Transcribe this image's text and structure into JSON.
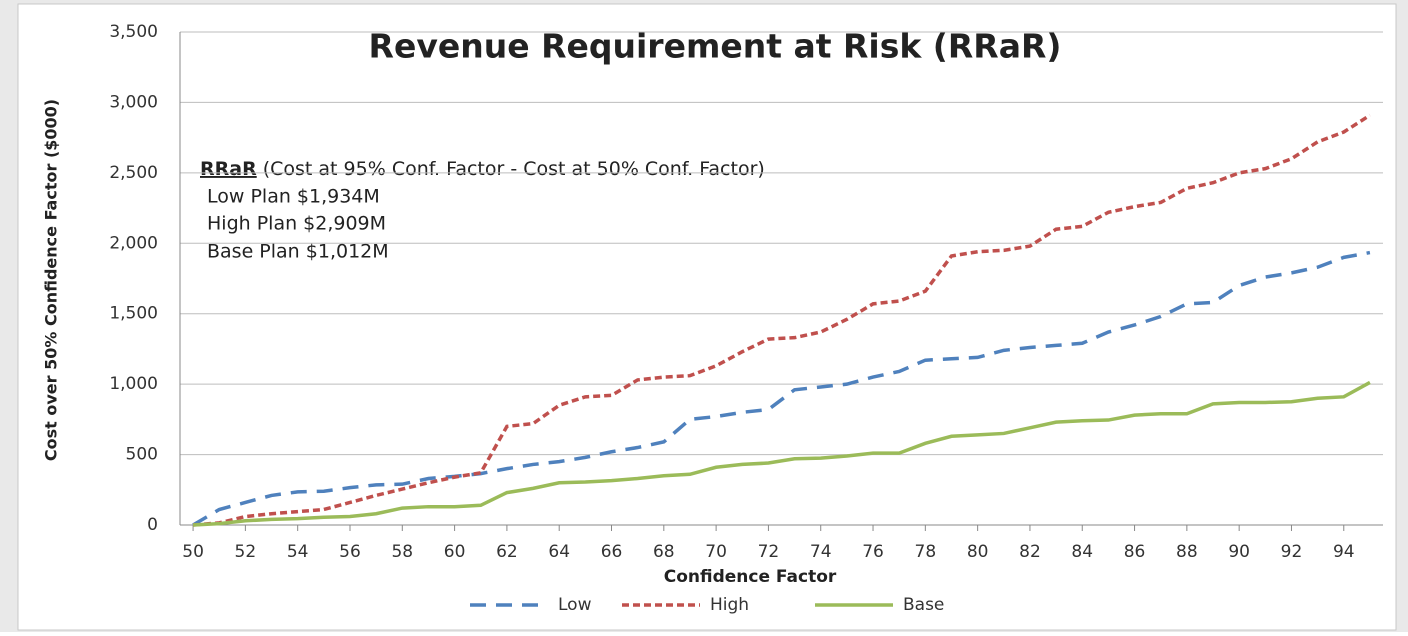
{
  "chart_data": {
    "type": "line",
    "title": "Revenue Requirement at Risk (RRaR)",
    "x_label": "Confidence Factor",
    "y_label": "Cost over 50% Confidence Factor ($000)",
    "annotation": {
      "heading": "RRaR",
      "heading_note": "(Cost at 95% Conf. Factor - Cost at 50% Conf. Factor)",
      "lines": [
        "Low Plan $1,934M",
        "High Plan $2,909M",
        "Base Plan $1,012M"
      ]
    },
    "x": [
      50,
      51,
      52,
      53,
      54,
      55,
      56,
      57,
      58,
      59,
      60,
      61,
      62,
      63,
      64,
      65,
      66,
      67,
      68,
      69,
      70,
      71,
      72,
      73,
      74,
      75,
      76,
      77,
      78,
      79,
      80,
      81,
      82,
      83,
      84,
      85,
      86,
      87,
      88,
      89,
      90,
      91,
      92,
      93,
      94,
      95
    ],
    "xlim": [
      49.5,
      95.5
    ],
    "xticks": [
      50,
      52,
      54,
      56,
      58,
      60,
      62,
      64,
      66,
      68,
      70,
      72,
      74,
      76,
      78,
      80,
      82,
      84,
      86,
      88,
      90,
      92,
      94
    ],
    "ylim": [
      0,
      3500
    ],
    "yticks": [
      0,
      500,
      {
        "value": 1000,
        "label": "1,000"
      },
      {
        "value": 1500,
        "label": "1,500"
      },
      {
        "value": 2000,
        "label": "2,000"
      },
      {
        "value": 2500,
        "label": "2,500"
      },
      {
        "value": 3000,
        "label": "3,000"
      },
      {
        "value": 3500,
        "label": "3,500"
      }
    ],
    "grid": true,
    "legend": "bottom",
    "series": [
      {
        "name": "Low",
        "color": "#4f81bd",
        "dash": "long",
        "values": [
          0,
          110,
          160,
          210,
          235,
          240,
          265,
          285,
          290,
          330,
          345,
          365,
          400,
          430,
          450,
          480,
          520,
          550,
          590,
          750,
          770,
          800,
          820,
          960,
          980,
          1000,
          1050,
          1090,
          1170,
          1180,
          1190,
          1240,
          1260,
          1275,
          1290,
          1370,
          1420,
          1480,
          1570,
          1580,
          1700,
          1760,
          1790,
          1830,
          1900,
          1934
        ]
      },
      {
        "name": "High",
        "color": "#c0504d",
        "dash": "short",
        "values": [
          0,
          15,
          60,
          80,
          95,
          110,
          160,
          210,
          255,
          300,
          340,
          370,
          700,
          720,
          850,
          910,
          920,
          1030,
          1050,
          1060,
          1130,
          1230,
          1320,
          1330,
          1370,
          1460,
          1570,
          1590,
          1660,
          1910,
          1940,
          1950,
          1980,
          2100,
          2120,
          2220,
          2260,
          2290,
          2390,
          2430,
          2500,
          2530,
          2600,
          2720,
          2790,
          2909
        ]
      },
      {
        "name": "Base",
        "color": "#9bbb59",
        "dash": "solid",
        "values": [
          0,
          10,
          30,
          40,
          45,
          55,
          60,
          80,
          120,
          130,
          130,
          140,
          230,
          260,
          300,
          305,
          315,
          330,
          350,
          360,
          410,
          430,
          440,
          470,
          475,
          490,
          510,
          510,
          580,
          630,
          640,
          650,
          690,
          730,
          740,
          745,
          780,
          790,
          790,
          860,
          870,
          870,
          875,
          900,
          910,
          1012
        ]
      }
    ]
  }
}
